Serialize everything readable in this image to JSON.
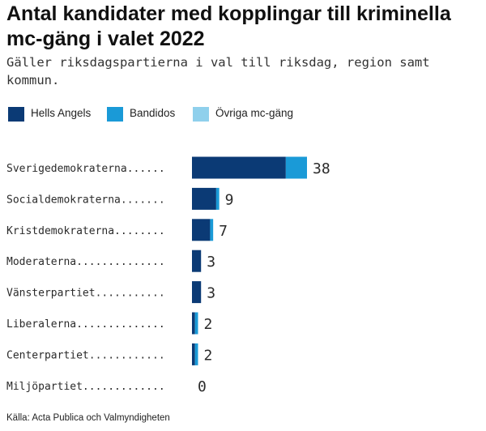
{
  "header": {
    "title": "Antal kandidater med kopplingar till kriminella mc-gäng i valet 2022",
    "subtitle": "Gäller riksdagspartierna i val till riksdag, region samt kommun."
  },
  "legend": [
    {
      "label": "Hells Angels",
      "color": "#0b3a75"
    },
    {
      "label": "Bandidos",
      "color": "#1a9ad7"
    },
    {
      "label": "Övriga mc-gäng",
      "color": "#8fd0ec"
    }
  ],
  "chart_data": {
    "type": "bar",
    "orientation": "horizontal",
    "stacked": true,
    "title": "Antal kandidater med kopplingar till kriminella mc-gäng i valet 2022",
    "subtitle": "Gäller riksdagspartierna i val till riksdag, region samt kommun.",
    "categories": [
      "Sverigedemokraterna",
      "Socialdemokraterna",
      "Kristdemokraterna",
      "Moderaterna",
      "Vänsterpartiet",
      "Liberalerna",
      "Centerpartiet",
      "Miljöpartiet"
    ],
    "display_labels": [
      "Sverigedemokraterna......",
      "Socialdemokraterna.......",
      "Kristdemokraterna........",
      "Moderaterna..............",
      "Vänsterpartiet...........",
      "Liberalerna..............",
      "Centerpartiet............",
      "Miljöpartiet............."
    ],
    "series": [
      {
        "name": "Hells Angels",
        "color": "#0b3a75",
        "values": [
          31,
          8,
          6,
          3,
          3,
          1,
          1,
          0
        ]
      },
      {
        "name": "Bandidos",
        "color": "#1a9ad7",
        "values": [
          7,
          1,
          1,
          0,
          0,
          1,
          1,
          0
        ]
      },
      {
        "name": "Övriga mc-gäng",
        "color": "#8fd0ec",
        "values": [
          0,
          0,
          0,
          0,
          0,
          0,
          0,
          0
        ]
      }
    ],
    "totals": [
      38,
      9,
      7,
      3,
      3,
      2,
      2,
      0
    ],
    "xlim": [
      0,
      38
    ],
    "grid": false,
    "legend_position": "top-left"
  },
  "source": "Källa: Acta Publica och Valmyndigheten"
}
